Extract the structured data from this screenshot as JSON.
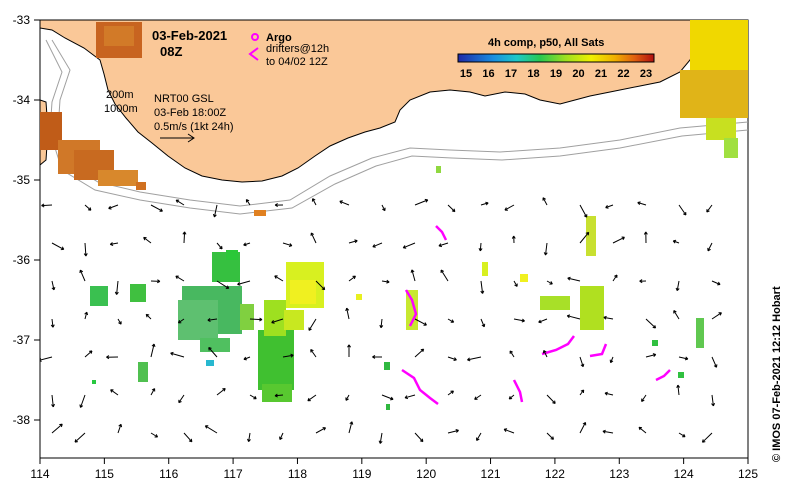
{
  "map": {
    "date": "03-Feb-2021",
    "time": "08Z",
    "argo_label": "Argo",
    "drifters_line1": "drifters@12h",
    "drifters_line2": "to 04/02 12Z",
    "isobath_1": "200m",
    "isobath_2": "1000m",
    "product_line1": "NRT00 GSL",
    "product_line2": "03-Feb 18:00Z",
    "speed_scale": "0.5m/s (1kt 24h)",
    "colorbar_title": "4h comp, p50, All Sats",
    "colorbar_ticks": [
      "15",
      "16",
      "17",
      "18",
      "19",
      "20",
      "21",
      "22",
      "23"
    ],
    "side_label": "© IMOS 07-Feb-2021 12:12 Hobart",
    "lon_ticks": [
      "114",
      "115",
      "116",
      "117",
      "118",
      "119",
      "120",
      "121",
      "122",
      "123",
      "124",
      "125"
    ],
    "lat_ticks": [
      "-33",
      "-34",
      "-35",
      "-36",
      "-37",
      "-38"
    ],
    "colors": {
      "land": "#fac898",
      "coast": "#000000",
      "isobath": "#a0a0a0",
      "drifter": "#ff00ff",
      "ocean": "#ffffff"
    }
  }
}
